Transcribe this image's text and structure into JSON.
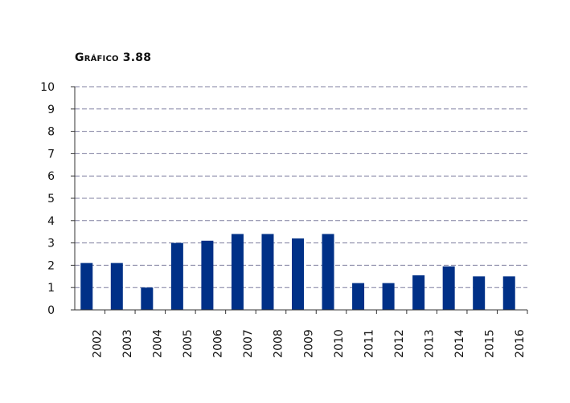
{
  "title": "Gráfico 3.88",
  "chart_data": {
    "type": "bar",
    "title": "Gráfico 3.88",
    "xlabel": "",
    "ylabel": "",
    "ylim": [
      0,
      10
    ],
    "yticks": [
      "0",
      "1",
      "2",
      "3",
      "4",
      "5",
      "6",
      "7",
      "8",
      "9",
      "10"
    ],
    "x_tick_labels": [
      "2002",
      "2003",
      "2004",
      "2005",
      "2006",
      "2007",
      "2008",
      "2009",
      "2010",
      "2011",
      "2012",
      "2013",
      "2014",
      "2015",
      "2016"
    ],
    "values": [
      2.1,
      2.1,
      1.0,
      3.0,
      3.1,
      3.4,
      3.4,
      3.2,
      3.4,
      1.2,
      1.2,
      1.55,
      1.95,
      1.5,
      1.5
    ],
    "grid": true,
    "colors": {
      "bar": "#003087",
      "grid": "#7f7f9f",
      "axis": "#333333"
    }
  }
}
